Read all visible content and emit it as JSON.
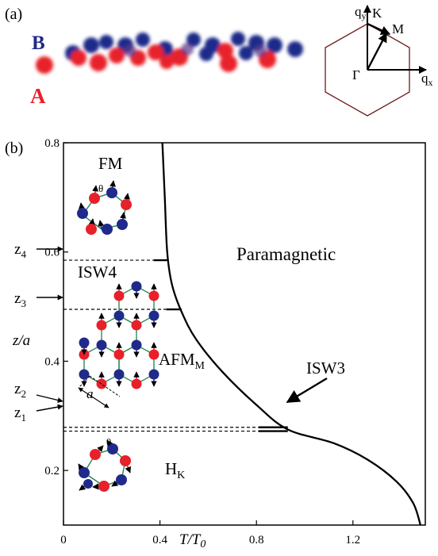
{
  "panel_a": {
    "label": "(a)",
    "sublattice_b": "B",
    "sublattice_a": "A",
    "bz": {
      "qy": "q",
      "qy_sub": "y",
      "qx": "q",
      "qx_sub": "x",
      "k": "K",
      "m": "M",
      "gamma": "Γ"
    },
    "colors": {
      "a": "#e8202a",
      "b": "#1f2a8a"
    }
  },
  "panel_b": {
    "label": "(b)",
    "regions": {
      "fm": "FM",
      "paramagnetic": "Paramagnetic",
      "isw4": "ISW4",
      "afm": "AFM",
      "afm_sub": "M",
      "isw3": "ISW3",
      "hk": "H",
      "hk_sub": "K"
    },
    "z_labels": [
      {
        "main": "z",
        "sub": "4"
      },
      {
        "main": "z",
        "sub": "3"
      },
      {
        "main": "z",
        "sub": "2"
      },
      {
        "main": "z",
        "sub": "1"
      }
    ],
    "theta": "θ",
    "lattice_a": "a"
  },
  "chart_data": {
    "type": "line",
    "xlabel": "T/T",
    "xlabel_sub": "0",
    "ylabel": "z/a",
    "xlim": [
      0,
      1.5
    ],
    "ylim": [
      0.1,
      0.8
    ],
    "x_ticks": [
      0,
      0.4,
      0.8,
      1.2
    ],
    "x_tick_labels": [
      "0",
      "0.4",
      "0.8",
      "1.2"
    ],
    "y_ticks": [
      0.2,
      0.4,
      0.6,
      0.8
    ],
    "y_tick_labels": [
      "0.2",
      "0.4",
      "0.6",
      "0.8"
    ],
    "phase_boundary": {
      "x": [
        1.48,
        1.45,
        1.38,
        1.26,
        1.12,
        0.93,
        0.8,
        0.66,
        0.55,
        0.49,
        0.45,
        0.43,
        0.42,
        0.41
      ],
      "y": [
        0.1,
        0.14,
        0.18,
        0.22,
        0.25,
        0.275,
        0.32,
        0.38,
        0.44,
        0.49,
        0.54,
        0.6,
        0.7,
        0.8
      ]
    },
    "transition_lines": [
      {
        "z": 0.585,
        "x_end": 0.43
      },
      {
        "z": 0.495,
        "x_end": 0.49
      },
      {
        "z": 0.279,
        "x_end": 0.93
      },
      {
        "z": 0.272,
        "x_end": 0.93
      }
    ]
  }
}
